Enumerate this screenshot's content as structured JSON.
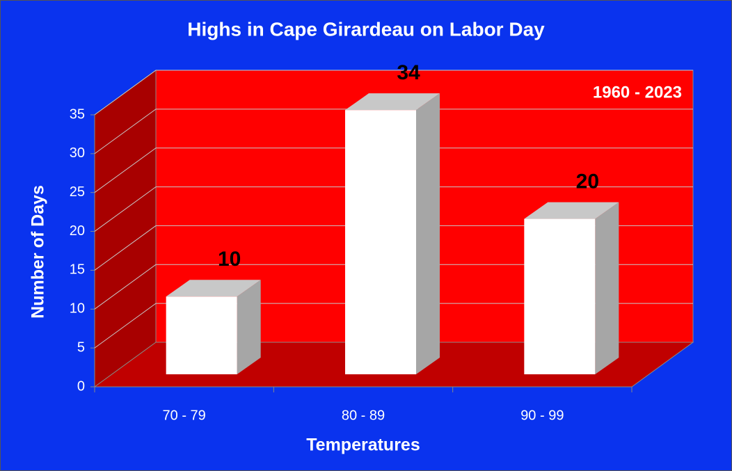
{
  "chart_data": {
    "type": "bar3d",
    "title": "Highs in Cape Girardeau on Labor Day",
    "annotation": "1960 - 2023",
    "x_label": "Temperatures",
    "y_label": "Number of Days",
    "categories": [
      "70 - 79",
      "80 - 89",
      "90 - 99"
    ],
    "values": [
      10,
      34,
      20
    ],
    "color": "#ffffff",
    "ylim": [
      0,
      35
    ],
    "yticks": [
      0,
      5,
      10,
      15,
      20,
      25,
      30,
      35
    ],
    "grid": true
  }
}
